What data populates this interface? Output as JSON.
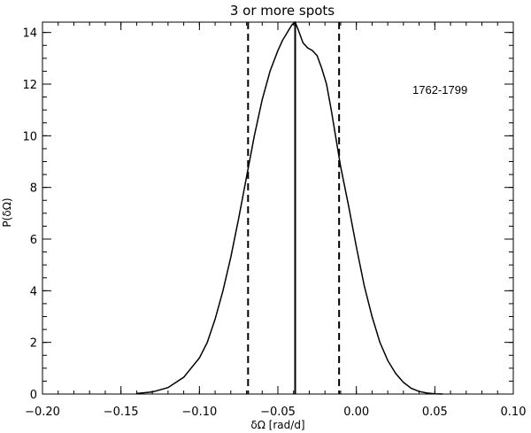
{
  "chart_data": {
    "type": "line",
    "title": "3 or more spots",
    "xlabel": "δΩ [rad/d]",
    "ylabel": "P(δΩ)",
    "annotation": "1762-1799",
    "xlim": [
      -0.2,
      0.1
    ],
    "ylim": [
      0,
      14.4
    ],
    "xticks": [
      -0.2,
      -0.15,
      -0.1,
      -0.05,
      0.0,
      0.05,
      0.1
    ],
    "xtick_labels": [
      "−0.20",
      "−0.15",
      "−0.10",
      "−0.05",
      "0.00",
      "0.05",
      "0.10"
    ],
    "yticks": [
      0,
      2,
      4,
      6,
      8,
      10,
      12,
      14
    ],
    "ytick_labels": [
      "0",
      "2",
      "4",
      "6",
      "8",
      "10",
      "12",
      "14"
    ],
    "grid": false,
    "series": [
      {
        "style": "solid",
        "x": [
          -0.14,
          -0.13,
          -0.12,
          -0.11,
          -0.1,
          -0.095,
          -0.09,
          -0.085,
          -0.08,
          -0.075,
          -0.07,
          -0.065,
          -0.06,
          -0.055,
          -0.05,
          -0.047,
          -0.044,
          -0.041,
          -0.039,
          -0.037,
          -0.034,
          -0.031,
          -0.028,
          -0.025,
          -0.022,
          -0.019,
          -0.016,
          -0.013,
          -0.01,
          -0.005,
          0.0,
          0.005,
          0.01,
          0.015,
          0.02,
          0.025,
          0.03,
          0.035,
          0.04,
          0.045,
          0.05,
          0.055
        ],
        "y": [
          0.02,
          0.08,
          0.25,
          0.65,
          1.4,
          2.0,
          2.9,
          4.0,
          5.3,
          6.8,
          8.4,
          10.0,
          11.4,
          12.5,
          13.3,
          13.7,
          14.0,
          14.3,
          14.4,
          14.1,
          13.6,
          13.4,
          13.3,
          13.1,
          12.6,
          12.0,
          11.0,
          9.9,
          8.8,
          7.3,
          5.7,
          4.2,
          3.0,
          2.0,
          1.3,
          0.8,
          0.45,
          0.22,
          0.1,
          0.04,
          0.01,
          0.0
        ]
      }
    ],
    "vlines": [
      {
        "x": -0.069,
        "style": "dashed"
      },
      {
        "x": -0.039,
        "style": "solid"
      },
      {
        "x": -0.011,
        "style": "dashed"
      }
    ]
  }
}
